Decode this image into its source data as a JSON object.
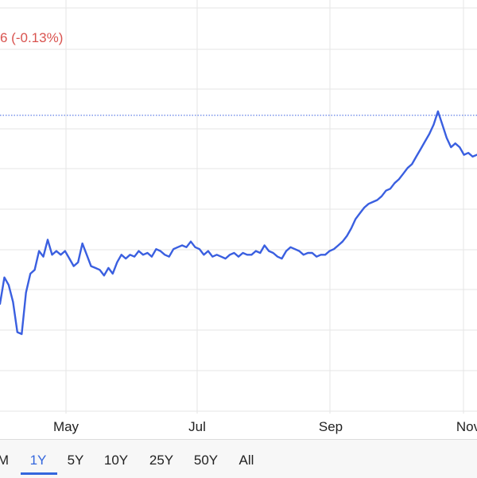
{
  "header": {
    "change_text": "6 (-0.13%)"
  },
  "colors": {
    "line": "#3a5fe0",
    "change_negative": "#d9534f",
    "grid": "#e6e6e6",
    "reference_line": "#3a5fe0",
    "active_range": "#3366dd"
  },
  "range_selector": {
    "items": [
      {
        "label": "M",
        "active": false
      },
      {
        "label": "1Y",
        "active": true
      },
      {
        "label": "5Y",
        "active": false
      },
      {
        "label": "10Y",
        "active": false
      },
      {
        "label": "25Y",
        "active": false
      },
      {
        "label": "50Y",
        "active": false
      },
      {
        "label": "All",
        "active": false
      }
    ]
  },
  "chart_data": {
    "type": "line",
    "title": "",
    "xlabel": "",
    "ylabel": "",
    "x_ticks": [
      "May",
      "Jul",
      "Sep",
      "Nov"
    ],
    "grid": true,
    "reference_line": "dotted horizontal at recent high",
    "series": [
      {
        "values": [
          2.0,
          3.4,
          3.0,
          2.1,
          0.5,
          0.4,
          2.6,
          3.6,
          3.8,
          4.8,
          4.5,
          5.4,
          4.6,
          4.8,
          4.6,
          4.8,
          4.4,
          4.0,
          4.2,
          5.2,
          4.6,
          4.0,
          3.9,
          3.8,
          3.5,
          3.9,
          3.6,
          4.2,
          4.6,
          4.4,
          4.6,
          4.5,
          4.8,
          4.6,
          4.7,
          4.5,
          4.9,
          4.8,
          4.6,
          4.5,
          4.9,
          5.0,
          5.1,
          5.0,
          5.3,
          5.0,
          4.9,
          4.6,
          4.8,
          4.5,
          4.6,
          4.5,
          4.4,
          4.6,
          4.7,
          4.5,
          4.7,
          4.6,
          4.6,
          4.8,
          4.7,
          5.1,
          4.8,
          4.7,
          4.5,
          4.4,
          4.8,
          5.0,
          4.9,
          4.8,
          4.6,
          4.7,
          4.7,
          4.5,
          4.6,
          4.6,
          4.8,
          4.9,
          5.1,
          5.3,
          5.6,
          6.0,
          6.5,
          6.8,
          7.1,
          7.3,
          7.4,
          7.5,
          7.7,
          8.0,
          8.1,
          8.4,
          8.6,
          8.9,
          9.2,
          9.4,
          9.8,
          10.2,
          10.6,
          11.0,
          11.5,
          12.2,
          11.5,
          10.8,
          10.3,
          10.5,
          10.3,
          9.9,
          10.0,
          9.8,
          9.9
        ]
      }
    ]
  }
}
